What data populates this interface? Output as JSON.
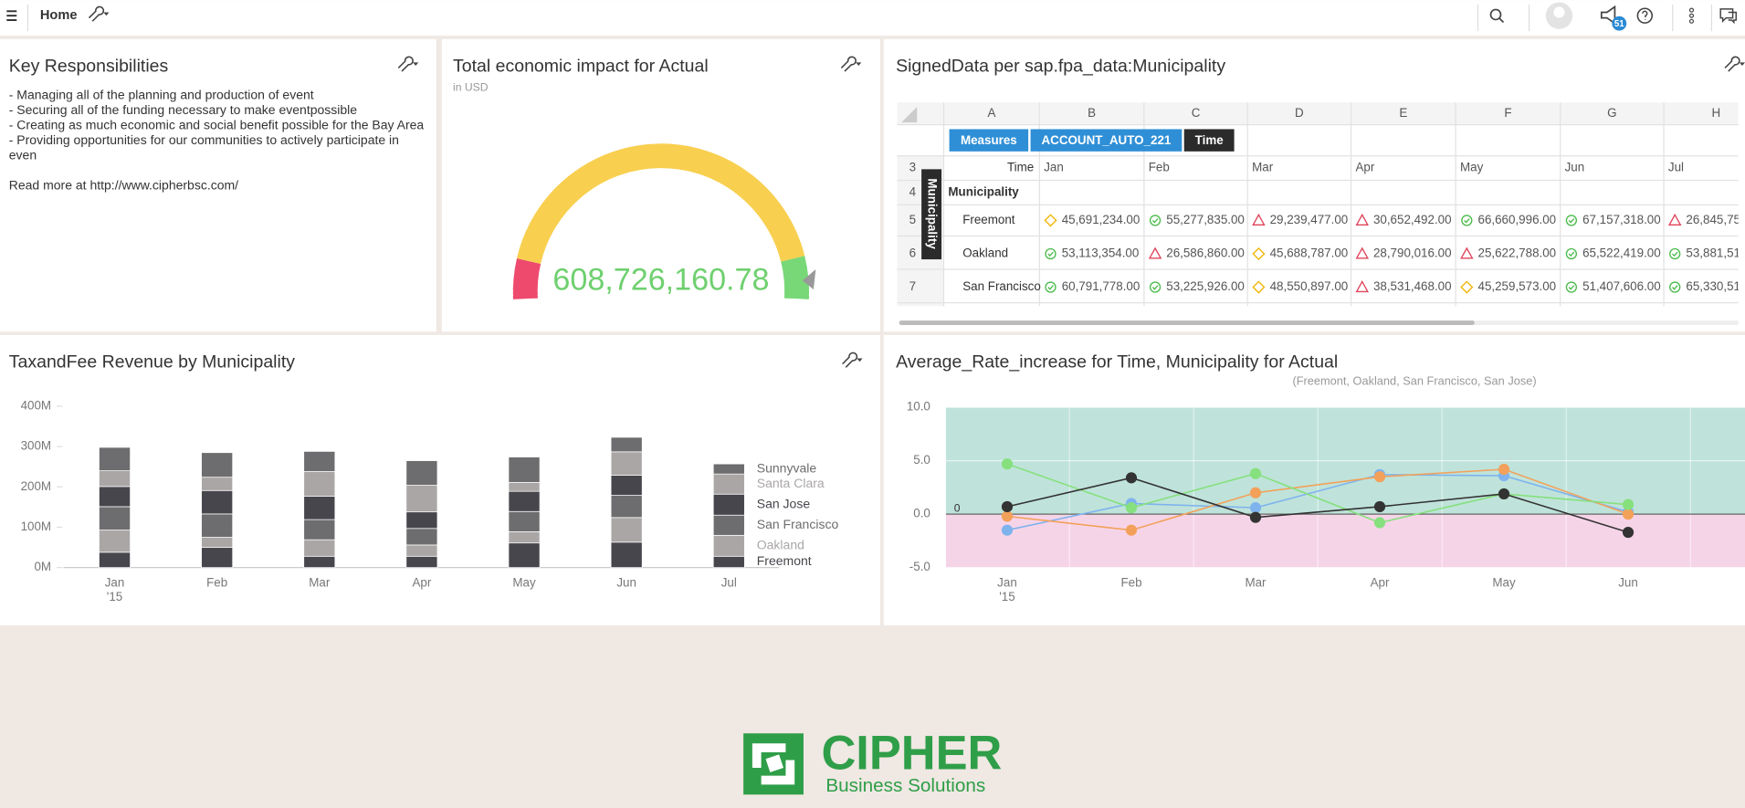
{
  "header": {
    "menu_title": "Home",
    "notification_count": "51"
  },
  "key_responsibilities": {
    "title": "Key Responsibilities",
    "lines": [
      "- Managing all of the planning and production of event",
      "- Securing all of the funding necessary to make eventpossible",
      "- Creating as much economic and social benefit possible for the Bay Area",
      "- Providing opportunities for our communities to actively participate in",
      "even"
    ],
    "link_text": "Read more at http://www.cipherbsc.com/"
  },
  "gauge": {
    "title": "Total economic impact for Actual",
    "subtitle": "in USD",
    "value": 608726160.78,
    "value_label": "608,726,160.78",
    "color": "#6fd06f"
  },
  "table": {
    "title": "SignedData per sap.fpa_data:Municipality",
    "column_letters": [
      "A",
      "B",
      "C",
      "D",
      "E",
      "F",
      "G",
      "H"
    ],
    "row_numbers": [
      3,
      4,
      5,
      6,
      7
    ],
    "dimension_chips": [
      "Measures",
      "ACCOUNT_AUTO_221",
      "Time"
    ],
    "column_header": "Time",
    "row_header": "Municipality",
    "side_label": "Municipality",
    "columns": [
      "Jan",
      "Feb",
      "Mar",
      "Apr",
      "May",
      "Jun",
      "Jul"
    ],
    "rows": [
      {
        "name": "Freemont",
        "cells": [
          "45,691,234.00",
          "55,277,835.00",
          "29,239,477.00",
          "30,652,492.00",
          "66,660,996.00",
          "67,157,318.00",
          "26,845,75"
        ],
        "icons": [
          "diamond",
          "check",
          "triangle",
          "triangle",
          "check",
          "check",
          "triangle"
        ]
      },
      {
        "name": "Oakland",
        "cells": [
          "53,113,354.00",
          "26,586,860.00",
          "45,688,787.00",
          "28,790,016.00",
          "25,622,788.00",
          "65,522,419.00",
          "53,881,51"
        ],
        "icons": [
          "check",
          "triangle",
          "diamond",
          "triangle",
          "triangle",
          "check",
          "check"
        ]
      },
      {
        "name": "San Francisco",
        "cells": [
          "60,791,778.00",
          "53,225,926.00",
          "48,550,897.00",
          "38,531,468.00",
          "45,259,573.00",
          "51,407,606.00",
          "65,330,51"
        ],
        "icons": [
          "check",
          "check",
          "diamond",
          "triangle",
          "diamond",
          "check",
          "check"
        ]
      }
    ]
  },
  "bar_chart": {
    "type": "bar",
    "stacked": true,
    "title": "TaxandFee Revenue by Municipality",
    "categories": [
      "Jan",
      "Feb",
      "Mar",
      "Apr",
      "May",
      "Jun",
      "Jul"
    ],
    "year_label": "'15",
    "ylim": [
      0,
      400
    ],
    "yticks": [
      {
        "value": 0,
        "label": "0M"
      },
      {
        "value": 100,
        "label": "100M"
      },
      {
        "value": 200,
        "label": "200M"
      },
      {
        "value": 300,
        "label": "300M"
      },
      {
        "value": 400,
        "label": "400M"
      }
    ],
    "grid": false,
    "series": [
      {
        "name": "Freemont",
        "color": "#47464c",
        "values": [
          38,
          50,
          28,
          28,
          61,
          63,
          28
        ]
      },
      {
        "name": "Oakland",
        "color": "#aaa6a6",
        "values": [
          55,
          25,
          41,
          28,
          28,
          61,
          52
        ]
      },
      {
        "name": "San Francisco",
        "color": "#6d6d6f",
        "values": [
          58,
          58,
          50,
          41,
          50,
          55,
          50
        ]
      },
      {
        "name": "San Jose",
        "color": "#47464c",
        "values": [
          50,
          58,
          58,
          41,
          50,
          50,
          52
        ]
      },
      {
        "name": "Santa Clara",
        "color": "#aaa6a6",
        "values": [
          39,
          33,
          61,
          66,
          22,
          58,
          50
        ]
      },
      {
        "name": "Sunnyvale",
        "color": "#6d6d6f",
        "values": [
          58,
          61,
          50,
          61,
          63,
          36,
          25
        ]
      }
    ]
  },
  "line_chart": {
    "type": "line",
    "title": "Average_Rate_increase for Time, Municipality for Actual",
    "subtitle": "(Freemont, Oakland, San Francisco, San Jose)",
    "zero_label": "0",
    "categories": [
      "Jan",
      "Feb",
      "Mar",
      "Apr",
      "May",
      "Jun"
    ],
    "year_label": "'15",
    "ylim": [
      -5,
      10
    ],
    "yticks": [
      {
        "value": 10,
        "label": "10.0"
      },
      {
        "value": 5,
        "label": "5.0"
      },
      {
        "value": 0,
        "label": "0.0"
      },
      {
        "value": -5,
        "label": "-5.0"
      }
    ],
    "positive_color": "#bfe3da",
    "negative_color": "#f6d4e8",
    "series": [
      {
        "color": "#7fb3ee",
        "values": [
          -1.5,
          1.0,
          0.6,
          3.7,
          3.6,
          0.2
        ]
      },
      {
        "color": "#f3a15a",
        "values": [
          -0.2,
          -1.5,
          2.0,
          3.5,
          4.2,
          0.0
        ]
      },
      {
        "color": "#86e07e",
        "values": [
          4.7,
          0.6,
          3.8,
          -0.8,
          1.9,
          0.9
        ]
      },
      {
        "color": "#333333",
        "values": [
          0.7,
          3.4,
          -0.3,
          0.7,
          1.9,
          -1.7
        ]
      }
    ]
  },
  "footer": {
    "brand": "CIPHER",
    "tagline": "Business Solutions"
  }
}
